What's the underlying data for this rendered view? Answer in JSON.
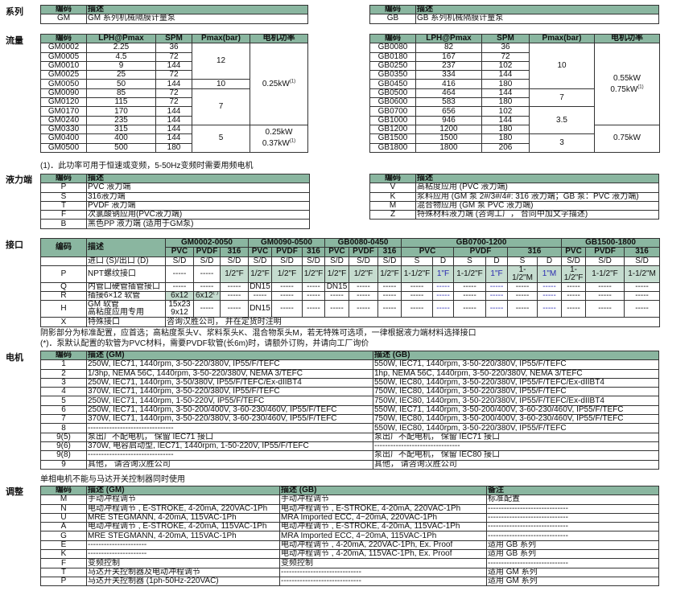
{
  "colors": {
    "header_bg": "#8ab6a0",
    "standard_config_bg": "#c5dccf",
    "d_port_text": "#2b2bb0"
  },
  "sections": {
    "series": "系列",
    "flow": "流量",
    "liquid_end": "液力端",
    "connection": "接口",
    "motor": "电机",
    "adjust": "调整"
  },
  "series": {
    "headers": [
      "编码",
      "描述"
    ],
    "left": [
      {
        "code": "GM",
        "desc": "GM 系列机械隔膜计量泵"
      }
    ],
    "right": [
      {
        "code": "GB",
        "desc": "GB 系列机械隔膜计量泵"
      }
    ]
  },
  "flow": {
    "headers": [
      "编码",
      "LPH@Pmax",
      "SPM",
      "Pmax(bar)",
      "电机功率"
    ],
    "left": [
      {
        "model": "GM0002",
        "lph": "2.25",
        "spm": "36",
        "pmax": "12",
        "power": {
          "lines": [
            "0.25kW"
          ],
          "sup": "(1)"
        }
      },
      {
        "model": "GM0005",
        "lph": "4.5",
        "spm": "72",
        "pmax": "12",
        "power": {
          "lines": [
            "0.25kW"
          ],
          "sup": "(1)"
        }
      },
      {
        "model": "GM0010",
        "lph": "9",
        "spm": "144",
        "pmax": "12",
        "power": {
          "lines": [
            "0.25kW"
          ],
          "sup": "(1)"
        }
      },
      {
        "model": "GM0025",
        "lph": "25",
        "spm": "72",
        "pmax": "12",
        "power": {
          "lines": [
            "0.25kW"
          ],
          "sup": "(1)"
        }
      },
      {
        "model": "GM0050",
        "lph": "50",
        "spm": "144",
        "pmax": "10",
        "power": {
          "lines": [
            "0.25kW"
          ],
          "sup": "(1)"
        }
      },
      {
        "model": "GM0090",
        "lph": "85",
        "spm": "72",
        "pmax": "7",
        "power": {
          "lines": [
            "0.25kW"
          ],
          "sup": "(1)"
        }
      },
      {
        "model": "GM0120",
        "lph": "115",
        "spm": "72",
        "pmax": "7",
        "power": {
          "lines": [
            "0.25kW"
          ],
          "sup": "(1)"
        }
      },
      {
        "model": "GM0170",
        "lph": "170",
        "spm": "144",
        "pmax": "7",
        "power": {
          "lines": [
            "0.25kW"
          ],
          "sup": "(1)"
        }
      },
      {
        "model": "GM0240",
        "lph": "235",
        "spm": "144",
        "pmax": "7",
        "power": {
          "lines": [
            "0.25kW"
          ],
          "sup": "(1)"
        }
      },
      {
        "model": "GM0330",
        "lph": "315",
        "spm": "144",
        "pmax": "5",
        "power": {
          "lines": [
            "0.25kW",
            "0.37kW"
          ],
          "sup": "(1)"
        }
      },
      {
        "model": "GM0400",
        "lph": "400",
        "spm": "144",
        "pmax": "5",
        "power": {
          "lines": [
            "0.25kW",
            "0.37kW"
          ],
          "sup": "(1)"
        }
      },
      {
        "model": "GM0500",
        "lph": "500",
        "spm": "180",
        "pmax": "5",
        "power": {
          "lines": [
            "0.25kW",
            "0.37kW"
          ],
          "sup": "(1)"
        }
      }
    ],
    "right": [
      {
        "model": "GB0080",
        "lph": "82",
        "spm": "36",
        "pmax": "10",
        "power": {
          "lines": [
            "0.55kW",
            "0.75kW"
          ],
          "sup": "(1)"
        }
      },
      {
        "model": "GB0180",
        "lph": "167",
        "spm": "72",
        "pmax": "10",
        "power": {
          "lines": [
            "0.55kW",
            "0.75kW"
          ],
          "sup": "(1)"
        }
      },
      {
        "model": "GB0250",
        "lph": "237",
        "spm": "102",
        "pmax": "10",
        "power": {
          "lines": [
            "0.55kW",
            "0.75kW"
          ],
          "sup": "(1)"
        }
      },
      {
        "model": "GB0350",
        "lph": "334",
        "spm": "144",
        "pmax": "10",
        "power": {
          "lines": [
            "0.55kW",
            "0.75kW"
          ],
          "sup": "(1)"
        }
      },
      {
        "model": "GB0450",
        "lph": "416",
        "spm": "180",
        "pmax": "10",
        "power": {
          "lines": [
            "0.55kW",
            "0.75kW"
          ],
          "sup": "(1)"
        }
      },
      {
        "model": "GB0500",
        "lph": "464",
        "spm": "144",
        "pmax": "7",
        "power": {
          "lines": [
            "0.55kW",
            "0.75kW"
          ],
          "sup": "(1)"
        }
      },
      {
        "model": "GB0600",
        "lph": "583",
        "spm": "180",
        "pmax": "7",
        "power": {
          "lines": [
            "0.55kW",
            "0.75kW"
          ],
          "sup": "(1)"
        }
      },
      {
        "model": "GB0700",
        "lph": "656",
        "spm": "102",
        "pmax": "3.5",
        "power": {
          "lines": [
            "0.55kW",
            "0.75kW"
          ],
          "sup": "(1)"
        }
      },
      {
        "model": "GB1000",
        "lph": "946",
        "spm": "144",
        "pmax": "3.5",
        "power": {
          "lines": [
            "0.55kW",
            "0.75kW"
          ],
          "sup": "(1)"
        }
      },
      {
        "model": "GB1200",
        "lph": "1200",
        "spm": "180",
        "pmax": "3.5",
        "power": {
          "lines": [
            "0.75kW"
          ],
          "sup": ""
        }
      },
      {
        "model": "GB1500",
        "lph": "1500",
        "spm": "180",
        "pmax": "3",
        "power": {
          "lines": [
            "0.75kW"
          ],
          "sup": ""
        }
      },
      {
        "model": "GB1800",
        "lph": "1800",
        "spm": "206",
        "pmax": "3",
        "power": {
          "lines": [
            "0.75kW"
          ],
          "sup": ""
        }
      }
    ],
    "footnote": "(1)．此功率可用于恒速或变频，5-50Hz变频时需要用频电机"
  },
  "liquid_end": {
    "headers": [
      "编码",
      "描述"
    ],
    "left": [
      {
        "code": "P",
        "desc": "PVC 液力端"
      },
      {
        "code": "S",
        "desc": "316液力端"
      },
      {
        "code": "T",
        "desc": "PVDF 液力端"
      },
      {
        "code": "F",
        "desc": "次氯酸钠应用(PVC液力端)"
      },
      {
        "code": "B",
        "desc": "黑色PP 液力端 (适用于GM泵)"
      }
    ],
    "right": [
      {
        "code": "V",
        "desc": "高粘度应用 (PVC 液力端)"
      },
      {
        "code": "K",
        "desc": "浆料应用 (GM 泵 2#/3#/4#: 316 液力端；GB 泵：PVC 液力端)"
      },
      {
        "code": "M",
        "desc": "混合物应用 (GM 泵 PVC 液力端)"
      },
      {
        "code": "Z",
        "desc": "特殊材料液力端 (咨询工厂， 合同中加文字描述)"
      }
    ]
  },
  "connection": {
    "code_header": "编码",
    "desc_header": "描述",
    "port_row_label": "进口 (S)/出口 (D)",
    "groups": [
      {
        "name": "GM0002-0050",
        "materials": [
          {
            "name": "PVC",
            "ports": [
              "S/D"
            ]
          },
          {
            "name": "PVDF",
            "ports": [
              "S/D"
            ]
          },
          {
            "name": "316",
            "ports": [
              "S/D"
            ]
          }
        ]
      },
      {
        "name": "GM0090-0500",
        "materials": [
          {
            "name": "PVC",
            "ports": [
              "S/D"
            ]
          },
          {
            "name": "PVDF",
            "ports": [
              "S/D"
            ]
          },
          {
            "name": "316",
            "ports": [
              "S/D"
            ]
          }
        ]
      },
      {
        "name": "GB0080-0450",
        "materials": [
          {
            "name": "PVC",
            "ports": [
              "S/D"
            ]
          },
          {
            "name": "PVDF",
            "ports": [
              "S/D"
            ]
          },
          {
            "name": "316",
            "ports": [
              "S/D"
            ]
          }
        ]
      },
      {
        "name": "GB0700-1200",
        "materials": [
          {
            "name": "PVC",
            "ports": [
              "S",
              "D"
            ]
          },
          {
            "name": "PVDF",
            "ports": [
              "S",
              "D"
            ]
          },
          {
            "name": "316",
            "ports": [
              "S",
              "D"
            ]
          }
        ]
      },
      {
        "name": "GB1500-1800",
        "materials": [
          {
            "name": "PVC",
            "ports": [
              "S/D"
            ]
          },
          {
            "name": "PVDF",
            "ports": [
              "S/D"
            ]
          },
          {
            "name": "316",
            "ports": [
              "S/D"
            ]
          }
        ]
      }
    ],
    "rows": [
      {
        "code": "P",
        "desc": "NPT螺纹接口",
        "cells": [
          "-----",
          "-----",
          {
            "v": "1/2\"F",
            "std": true
          },
          {
            "v": "1/2\"F",
            "std": true
          },
          {
            "v": "1/2\"F",
            "std": true
          },
          {
            "v": "1/2\"F",
            "std": true
          },
          {
            "v": "1/2\"F",
            "std": true
          },
          {
            "v": "1/2\"F",
            "std": true
          },
          {
            "v": "1/2\"F",
            "std": true
          },
          {
            "v": "1-1/2\"F",
            "std": true
          },
          {
            "v": "1\"F",
            "std": true
          },
          {
            "v": "1-1/2\"F",
            "std": true
          },
          {
            "v": "1\"F",
            "std": true
          },
          {
            "v": "1-1/2\"M",
            "std": true
          },
          {
            "v": "1\"M",
            "std": true
          },
          {
            "v": "1-1/2\"F",
            "std": true
          },
          {
            "v": "1-1/2\"F",
            "std": true
          },
          {
            "v": "1-1/2\"M",
            "std": true
          }
        ]
      },
      {
        "code": "Q",
        "desc": "内管口硬管插管接口",
        "cells": [
          "-----",
          "-----",
          "-----",
          "DN15",
          "-----",
          "-----",
          "DN15",
          "-----",
          "-----",
          "-----",
          "-----",
          "-----",
          "-----",
          "-----",
          "-----",
          "-----",
          "-----",
          "-----"
        ]
      },
      {
        "code": "R",
        "desc": "插接6×12 软管",
        "cells": [
          {
            "v": "6x12",
            "std": true
          },
          {
            "v": "6x12",
            "sup": "(*)",
            "std": true
          },
          "-----",
          "-----",
          "-----",
          "-----",
          "-----",
          "-----",
          "-----",
          "-----",
          "-----",
          "-----",
          "-----",
          "-----",
          "-----",
          "-----",
          "-----",
          "-----"
        ]
      },
      {
        "code": "H",
        "desc": "GM 软管\n高粘度应用专用",
        "cells": [
          "15x23\n9x12",
          "-----",
          "-----",
          "DN15",
          "-----",
          "-----",
          "-----",
          "-----",
          "-----",
          "-----",
          "-----",
          "-----",
          "-----",
          "-----",
          "-----",
          "-----",
          "-----",
          "-----"
        ]
      },
      {
        "code": "X",
        "desc": "特殊接口",
        "merged": "咨询汉胜公司， 并在定货时注明"
      }
    ],
    "notes": [
      "阴影部分为标准配置，应首选；高粘度泵头V、浆料泵头K、混合物泵头M，若无特殊可选项，一律根据液力端材料选择接口",
      "(*)．泵默认配置的软管为PVC材料，需要PVDF软管(长6m)时，请额外订购，并请向工厂询价"
    ]
  },
  "motor": {
    "headers": [
      "编码",
      "描述 (GM)",
      "描述 (GB)"
    ],
    "rows": [
      {
        "code": "1",
        "gm": "250W,  IEC71,  1440rpm,  3-50-220/380V,  IP55/F/TEFC",
        "gb": "550W,  IEC71,  1440rpm,  3-50-220/380V,  IP55/F/TEFC"
      },
      {
        "code": "2",
        "gm": "1/3hp,  NEMA 56C,  1440rpm,  3-50-220/380V,  NEMA 3/TEFC",
        "gb": "1hp,  NEMA 56C,  1440rpm,  3-50-220/380V,  NEMA 3/TEFC"
      },
      {
        "code": "3",
        "gm": "250W,  IEC71,  1440rpm,  3-50/380V,  IP55/F/TEFC/Ex-dIIBT4",
        "gb": "550W,  IEC80,  1440rpm,  3-50-220/380V,  IP55/F/TEFC/Ex-dIIBT4"
      },
      {
        "code": "4",
        "gm": "370W,  IEC71,  1440rpm,  3-50-220/380V,  IP55/F/TEFC",
        "gb": "750W,  IEC80,  1440rpm,  3-50-220/380V,  IP55/F/TEFC"
      },
      {
        "code": "5",
        "gm": "250W,  IEC71,  1440rpm,  1-50-220V,  IP55/F/TEFC",
        "gb": "750W,  IEC80,  1440rpm,  3-50-220/380V,  IP55/F/TEFC/Ex-dIIBT4"
      },
      {
        "code": "6",
        "gm": "250W,  IEC71,  1440rpm,  3-50-200/400V,  3-60-230/460V,  IP55/F/TEFC",
        "gb": "550W,  IEC71,  1440rpm,  3-50-200/400V,  3-60-230/460V,  IP55/F/TEFC"
      },
      {
        "code": "7",
        "gm": "370W,  IEC71,  1440rpm,  3-50-220/380V,  3-60-230/460V,  IP55/F/TEFC",
        "gb": "750W,  IEC80,  1440rpm,  3-50-200/400V,  3-60-230/460V,  IP55/F/TEFC"
      },
      {
        "code": "8",
        "gm": "--------------------------------",
        "gb": "550W,  IEC80,  1440rpm,  3-50-220/380V,  IP55/F/TEFC"
      },
      {
        "code": "9(5)",
        "gm": "泵出厂不配电机， 保留 IEC71 接口",
        "gb": "泵出厂不配电机， 保留 IEC71 接口"
      },
      {
        "code": "9(6)",
        "gm": "370W,  电容启动型,  IEC71,  1440rpm,  1-50-220V,  IP55/F/TEFC",
        "gb": "--------------------------------"
      },
      {
        "code": "9(8)",
        "gm": "--------------------------------",
        "gb": "泵出厂不配电机， 保留 IEC80 接口"
      },
      {
        "code": "9",
        "gm": "其他， 请咨询汉胜公司",
        "gb": "其他， 请咨询汉胜公司"
      }
    ],
    "note": "单相电机不能与马达开关控制器同时使用"
  },
  "adjust": {
    "headers": [
      "编码",
      "描述 (GM)",
      "描述 (GB)",
      "备注"
    ],
    "rows": [
      {
        "code": "M",
        "gm": "手动冲程调节",
        "gb": "手动冲程调节",
        "remark": "标准配置"
      },
      {
        "code": "N",
        "gm": "电动冲程调节 , E-STROKE, 4-20mA, 220VAC-1Ph",
        "gb": "电动冲程调节 , E-STROKE, 4-20mA, 220VAC-1Ph",
        "remark": "------------------------------"
      },
      {
        "code": "U",
        "gm": "MRE STEGMANN, 4-20mA, 115VAC-1Ph",
        "gb": "MRA Imported ECC, 4~20mA, 220VAC-1Ph",
        "remark": "------------------------------"
      },
      {
        "code": "A",
        "gm": "电动冲程调节 , E-STROKE, 4-20mA, 115VAC-1Ph",
        "gb": "电动冲程调节 , E-STROKE, 4-20mA, 115VAC-1Ph",
        "remark": "------------------------------"
      },
      {
        "code": "G",
        "gm": "MRE STEGMANN, 4-20mA, 115VAC-1Ph",
        "gb": "MRA Imported ECC, 4~20mA, 115VAC-1Ph",
        "remark": "------------------------------"
      },
      {
        "code": "E",
        "gm": "----------------------",
        "gb": "电动冲程调节 , 4-20mA, 220VAC-1Ph, Ex. Proof",
        "remark": "适用 GB 系列"
      },
      {
        "code": "K",
        "gm": "----------------------",
        "gb": "电动冲程调节 , 4-20mA, 115VAC-1Ph, Ex. Proof",
        "remark": "适用 GB 系列"
      },
      {
        "code": "F",
        "gm": "变频控制",
        "gb": "变频控制",
        "remark": "------------------------------"
      },
      {
        "code": "T",
        "gm": "马达开关控制器及电动冲程调节",
        "gb": "------------------------------",
        "remark": "适用 GM 系列"
      },
      {
        "code": "P",
        "gm": "马达开关控制器  (1ph-50Hz-220VAC)",
        "gb": "------------------------------",
        "remark": "适用 GM 系列"
      }
    ]
  }
}
